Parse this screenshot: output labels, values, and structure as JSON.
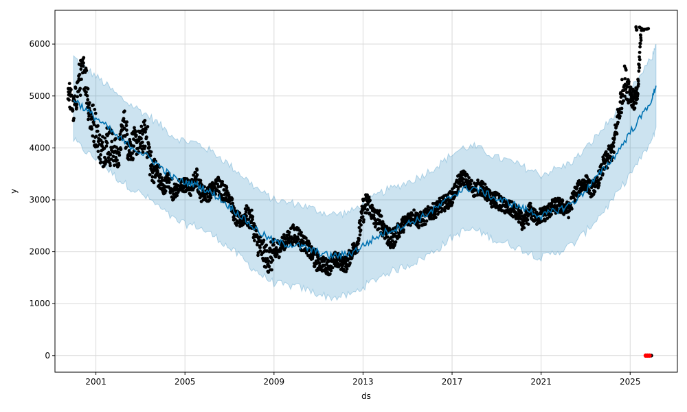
{
  "chart_data": {
    "type": "line",
    "title": "",
    "xlabel": "ds",
    "ylabel": "y",
    "x_range": [
      "1999-03-01",
      "2027-02-15"
    ],
    "ylim": [
      -320,
      6650
    ],
    "x_ticks": [
      "2001-01-01",
      "2005-01-01",
      "2009-01-01",
      "2013-01-01",
      "2017-01-01",
      "2021-01-01",
      "2025-01-01"
    ],
    "x_tick_labels": [
      "2001",
      "2005",
      "2009",
      "2013",
      "2017",
      "2021",
      "2025"
    ],
    "y_ticks": [
      0,
      1000,
      2000,
      3000,
      4000,
      5000,
      6000
    ],
    "y_tick_labels": [
      "0",
      "1000",
      "2000",
      "3000",
      "4000",
      "5000",
      "6000"
    ],
    "grid": true,
    "legend": "none",
    "colors": {
      "forecast": "#0072B2",
      "uncertainty": "#0072B2",
      "observed": "#000000",
      "outlier": "#ff0000",
      "grid": "#d9d9d9"
    },
    "series": [
      {
        "kind": "forecast",
        "x": [
          "2000-01-01",
          "2000-07-01",
          "2001-01-01",
          "2001-07-01",
          "2002-01-01",
          "2002-07-01",
          "2003-01-01",
          "2003-07-01",
          "2004-01-01",
          "2004-07-01",
          "2005-01-01",
          "2005-07-01",
          "2006-01-01",
          "2006-07-01",
          "2007-01-01",
          "2007-07-01",
          "2008-01-01",
          "2008-07-01",
          "2009-01-01",
          "2009-07-01",
          "2010-01-01",
          "2010-07-01",
          "2011-01-01",
          "2011-07-01",
          "2012-01-01",
          "2012-07-01",
          "2013-01-01",
          "2013-07-01",
          "2014-01-01",
          "2014-07-01",
          "2015-01-01",
          "2015-07-01",
          "2016-01-01",
          "2016-07-01",
          "2017-01-01",
          "2017-07-01",
          "2018-01-01",
          "2018-07-01",
          "2019-01-01",
          "2019-07-01",
          "2020-01-01",
          "2020-07-01",
          "2021-01-01",
          "2021-07-01",
          "2022-01-01",
          "2022-07-01",
          "2023-01-01",
          "2023-07-01",
          "2024-01-01",
          "2024-07-01",
          "2025-01-01",
          "2025-07-01",
          "2026-01-01",
          "2026-03-01"
        ],
        "y": [
          4950,
          4750,
          4580,
          4400,
          4200,
          4050,
          3920,
          3780,
          3600,
          3420,
          3330,
          3300,
          3180,
          3050,
          2870,
          2700,
          2500,
          2330,
          2200,
          2150,
          2130,
          2060,
          1990,
          1920,
          1930,
          1980,
          2120,
          2250,
          2380,
          2450,
          2540,
          2630,
          2760,
          2900,
          3080,
          3200,
          3230,
          3130,
          3010,
          2960,
          2870,
          2780,
          2680,
          2770,
          2840,
          2970,
          3180,
          3430,
          3680,
          3960,
          4300,
          4600,
          4960,
          5200
        ],
        "lower": [
          4150,
          3950,
          3780,
          3600,
          3400,
          3250,
          3120,
          2980,
          2800,
          2620,
          2530,
          2500,
          2380,
          2250,
          2070,
          1900,
          1700,
          1530,
          1400,
          1350,
          1330,
          1260,
          1190,
          1120,
          1130,
          1180,
          1320,
          1450,
          1580,
          1650,
          1740,
          1830,
          1960,
          2100,
          2280,
          2400,
          2430,
          2330,
          2210,
          2160,
          2070,
          1980,
          1880,
          1970,
          2040,
          2170,
          2380,
          2630,
          2880,
          3160,
          3500,
          3800,
          4160,
          4400
        ],
        "upper": [
          5750,
          5550,
          5380,
          5200,
          5000,
          4850,
          4720,
          4580,
          4400,
          4220,
          4130,
          4100,
          3980,
          3850,
          3670,
          3500,
          3300,
          3130,
          3000,
          2950,
          2930,
          2860,
          2790,
          2720,
          2730,
          2780,
          2920,
          3050,
          3180,
          3250,
          3340,
          3430,
          3560,
          3700,
          3880,
          4000,
          4030,
          3930,
          3810,
          3760,
          3670,
          3580,
          3480,
          3570,
          3640,
          3770,
          3980,
          4230,
          4480,
          4760,
          5100,
          5400,
          5760,
          6000
        ]
      },
      {
        "kind": "observed",
        "x": [
          "1999-10-01",
          "2000-01-01",
          "2000-04-01",
          "2000-07-01",
          "2000-10-01",
          "2001-01-01",
          "2001-04-01",
          "2001-07-01",
          "2001-10-01",
          "2002-01-01",
          "2002-04-01",
          "2002-07-01",
          "2002-10-01",
          "2003-01-01",
          "2003-04-01",
          "2003-07-01",
          "2003-10-01",
          "2004-01-01",
          "2004-04-01",
          "2004-07-01",
          "2004-10-01",
          "2005-01-01",
          "2005-04-01",
          "2005-07-01",
          "2005-10-01",
          "2006-01-01",
          "2006-04-01",
          "2006-07-01",
          "2006-10-01",
          "2007-01-01",
          "2007-04-01",
          "2007-07-01",
          "2007-10-01",
          "2008-01-01",
          "2008-04-01",
          "2008-07-01",
          "2008-10-01",
          "2009-01-01",
          "2009-04-01",
          "2009-07-01",
          "2009-10-01",
          "2010-01-01",
          "2010-04-01",
          "2010-07-01",
          "2010-10-01",
          "2011-01-01",
          "2011-04-01",
          "2011-07-01",
          "2011-10-01",
          "2012-01-01",
          "2012-04-01",
          "2012-07-01",
          "2012-10-01",
          "2013-01-01",
          "2013-04-01",
          "2013-07-01",
          "2013-10-01",
          "2014-01-01",
          "2014-04-01",
          "2014-07-01",
          "2014-10-01",
          "2015-01-01",
          "2015-04-01",
          "2015-07-01",
          "2015-10-01",
          "2016-01-01",
          "2016-04-01",
          "2016-07-01",
          "2016-10-01",
          "2017-01-01",
          "2017-04-01",
          "2017-07-01",
          "2017-10-01",
          "2018-01-01",
          "2018-04-01",
          "2018-07-01",
          "2018-10-01",
          "2019-01-01",
          "2019-04-01",
          "2019-07-01",
          "2019-10-01",
          "2020-01-01",
          "2020-04-01",
          "2020-07-01",
          "2020-10-01",
          "2021-01-01",
          "2021-04-01",
          "2021-07-01",
          "2021-10-01",
          "2022-01-01",
          "2022-04-01",
          "2022-07-01",
          "2022-10-01",
          "2023-01-01",
          "2023-04-01",
          "2023-07-01",
          "2023-10-01",
          "2024-01-01",
          "2024-04-01",
          "2024-07-01",
          "2024-10-01",
          "2025-01-01",
          "2025-03-01",
          "2025-05-01",
          "2025-07-01"
        ],
        "y": [
          5150,
          4700,
          5300,
          5500,
          4600,
          4350,
          3900,
          4100,
          4000,
          3800,
          4500,
          4000,
          4100,
          4100,
          4300,
          3600,
          3550,
          3200,
          3400,
          3150,
          3250,
          3300,
          3200,
          3450,
          3150,
          3100,
          3200,
          3300,
          3150,
          3100,
          2650,
          2600,
          2700,
          2600,
          2200,
          2000,
          1850,
          1950,
          2100,
          2200,
          2300,
          2350,
          2200,
          2100,
          1900,
          1800,
          1750,
          1700,
          1850,
          1800,
          1750,
          2000,
          2150,
          2800,
          2950,
          2650,
          2600,
          2400,
          2200,
          2350,
          2500,
          2600,
          2700,
          2600,
          2650,
          2750,
          2800,
          2900,
          2950,
          3050,
          3300,
          3450,
          3300,
          3200,
          3250,
          3150,
          3000,
          3000,
          2900,
          2850,
          2800,
          2700,
          2500,
          2800,
          2650,
          2700,
          2750,
          2850,
          2900,
          2850,
          2800,
          3100,
          3250,
          3350,
          3200,
          3300,
          3600,
          3800,
          4000,
          4700,
          5300,
          5100,
          4900,
          5000,
          6300
        ],
        "spread": [
          250,
          300,
          350,
          400,
          400,
          300,
          350,
          400,
          300,
          250,
          350,
          300,
          250,
          300,
          350,
          250,
          250,
          150,
          200,
          150,
          150,
          150,
          150,
          200,
          150,
          150,
          150,
          200,
          150,
          150,
          150,
          150,
          200,
          200,
          250,
          250,
          300,
          200,
          150,
          150,
          200,
          200,
          150,
          150,
          200,
          150,
          150,
          150,
          150,
          150,
          150,
          150,
          200,
          250,
          200,
          200,
          200,
          200,
          200,
          150,
          150,
          150,
          150,
          150,
          150,
          150,
          150,
          150,
          150,
          150,
          150,
          150,
          150,
          150,
          150,
          150,
          150,
          150,
          150,
          150,
          150,
          150,
          200,
          150,
          150,
          150,
          150,
          150,
          150,
          150,
          150,
          150,
          150,
          150,
          150,
          150,
          200,
          200,
          250,
          300,
          300,
          200,
          200,
          200,
          50
        ]
      },
      {
        "kind": "outlier",
        "x": [
          "2025-09-15",
          "2025-10-15",
          "2025-11-15"
        ],
        "y": [
          0,
          0,
          0
        ]
      }
    ]
  }
}
